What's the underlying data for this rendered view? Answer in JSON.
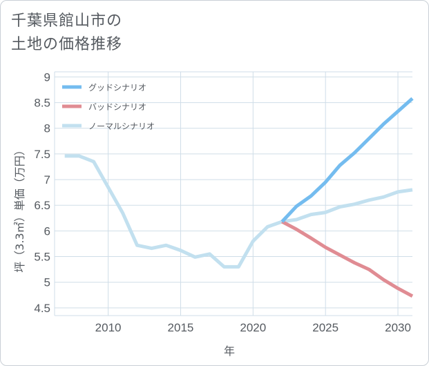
{
  "header": {
    "title_line1": "千葉県館山市の",
    "title_line2": "土地の価格推移"
  },
  "chart_data": {
    "type": "line",
    "title": "千葉県館山市の土地の価格推移",
    "xlabel": "年",
    "ylabel": "坪（3.3㎡）単価（万円）",
    "xlim": [
      2006.3,
      2031
    ],
    "ylim": [
      4.35,
      9.1
    ],
    "x_ticks": [
      2010,
      2015,
      2020,
      2025,
      2030
    ],
    "x_tick_labels": [
      "2010",
      "2015",
      "2020",
      "2025",
      "2030"
    ],
    "y_ticks": [
      4.5,
      5,
      5.5,
      6,
      6.5,
      7,
      7.5,
      8,
      8.5,
      9
    ],
    "y_tick_labels": [
      "4.5",
      "5",
      "5.5",
      "6",
      "6.5",
      "7",
      "7.5",
      "8",
      "8.5",
      "9"
    ],
    "grid": true,
    "legend_position": "top-left",
    "series": [
      {
        "name": "グッドシナリオ",
        "color": "#74bcef",
        "x": [
          2022,
          2023,
          2024,
          2025,
          2026,
          2027,
          2028,
          2029,
          2030,
          2031
        ],
        "values": [
          6.18,
          6.48,
          6.68,
          6.95,
          7.28,
          7.52,
          7.8,
          8.08,
          8.33,
          8.58
        ]
      },
      {
        "name": "バッドシナリオ",
        "color": "#e08c93",
        "x": [
          2022,
          2023,
          2024,
          2025,
          2026,
          2027,
          2028,
          2029,
          2030,
          2031
        ],
        "values": [
          6.18,
          6.03,
          5.86,
          5.68,
          5.53,
          5.38,
          5.25,
          5.05,
          4.88,
          4.73
        ]
      },
      {
        "name": "ノーマルシナリオ",
        "color": "#c2e0ef",
        "x": [
          2007,
          2008,
          2009,
          2010,
          2011,
          2012,
          2013,
          2014,
          2015,
          2016,
          2017,
          2018,
          2019,
          2020,
          2021,
          2022,
          2023,
          2024,
          2025,
          2026,
          2027,
          2028,
          2029,
          2030,
          2031
        ],
        "values": [
          7.46,
          7.46,
          7.35,
          6.85,
          6.35,
          5.72,
          5.66,
          5.72,
          5.62,
          5.49,
          5.55,
          5.3,
          5.3,
          5.8,
          6.08,
          6.18,
          6.22,
          6.32,
          6.36,
          6.47,
          6.52,
          6.6,
          6.66,
          6.76,
          6.8
        ]
      }
    ]
  }
}
